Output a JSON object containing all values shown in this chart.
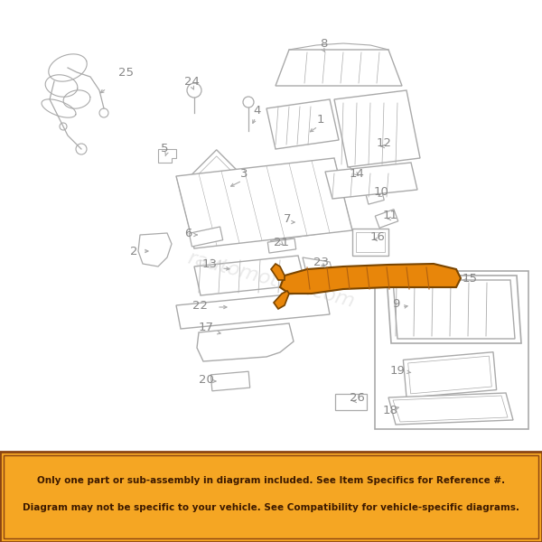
{
  "background_color": "#ffffff",
  "banner_bg": "#f5a623",
  "banner_border": "#8B4513",
  "banner_text_color": "#3d1a00",
  "banner_text_line1": "Only one part or sub-assembly in diagram included. See Item Specifics for Reference #.",
  "banner_text_line2": "Diagram may not be specific to your vehicle. See Compatibility for vehicle-specific diagrams.",
  "diagram_line_color": "#aaaaaa",
  "highlight_color": "#e8860a",
  "highlight_edge": "#7a4500",
  "watermark_text": "rаutomotive.com",
  "watermark_color": "#cccccc",
  "watermark_alpha": 0.4,
  "figsize": [
    6.0,
    6.0
  ],
  "dpi": 100,
  "num_color": "#888888",
  "num_fontsize": 9.5
}
